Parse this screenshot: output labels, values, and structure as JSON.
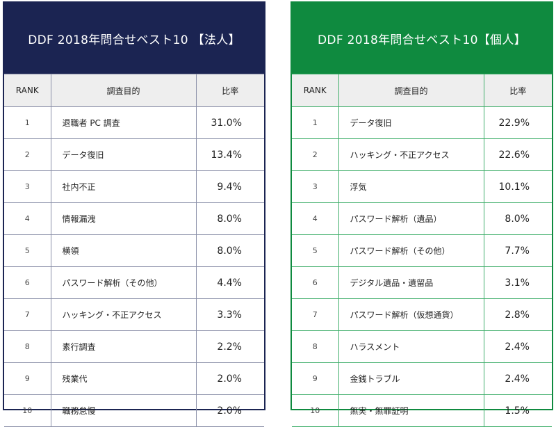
{
  "tables": [
    {
      "title": "DDF 2018年問合せベスト10 【法人】",
      "color": "#1b2452",
      "headers": [
        "RANK",
        "調査目的",
        "比率"
      ],
      "rows": [
        {
          "rank": "1",
          "purpose": "退職者 PC 調査",
          "rate": "31.0%"
        },
        {
          "rank": "2",
          "purpose": "データ復旧",
          "rate": "13.4%"
        },
        {
          "rank": "3",
          "purpose": "社内不正",
          "rate": "9.4%"
        },
        {
          "rank": "4",
          "purpose": "情報漏洩",
          "rate": "8.0%"
        },
        {
          "rank": "5",
          "purpose": "横領",
          "rate": "8.0%"
        },
        {
          "rank": "6",
          "purpose": "パスワード解析（その他）",
          "rate": "4.4%"
        },
        {
          "rank": "7",
          "purpose": "ハッキング・不正アクセス",
          "rate": "3.3%"
        },
        {
          "rank": "8",
          "purpose": "素行調査",
          "rate": "2.2%"
        },
        {
          "rank": "9",
          "purpose": "残業代",
          "rate": "2.0%"
        },
        {
          "rank": "10",
          "purpose": "職務怠慢",
          "rate": "2.0%"
        }
      ]
    },
    {
      "title": "DDF 2018年問合せベスト10【個人】",
      "color": "#0f8a3f",
      "headers": [
        "RANK",
        "調査目的",
        "比率"
      ],
      "rows": [
        {
          "rank": "1",
          "purpose": "データ復旧",
          "rate": "22.9%"
        },
        {
          "rank": "2",
          "purpose": "ハッキング・不正アクセス",
          "rate": "22.6%"
        },
        {
          "rank": "3",
          "purpose": "浮気",
          "rate": "10.1%"
        },
        {
          "rank": "4",
          "purpose": "パスワード解析（遺品）",
          "rate": "8.0%"
        },
        {
          "rank": "5",
          "purpose": "パスワード解析（その他）",
          "rate": "7.7%"
        },
        {
          "rank": "6",
          "purpose": "デジタル遺品・遺留品",
          "rate": "3.1%"
        },
        {
          "rank": "7",
          "purpose": "パスワード解析（仮想通貨）",
          "rate": "2.8%"
        },
        {
          "rank": "8",
          "purpose": "ハラスメント",
          "rate": "2.4%"
        },
        {
          "rank": "9",
          "purpose": "金銭トラブル",
          "rate": "2.4%"
        },
        {
          "rank": "10",
          "purpose": "無実・無罪証明",
          "rate": "1.5%"
        }
      ]
    }
  ]
}
